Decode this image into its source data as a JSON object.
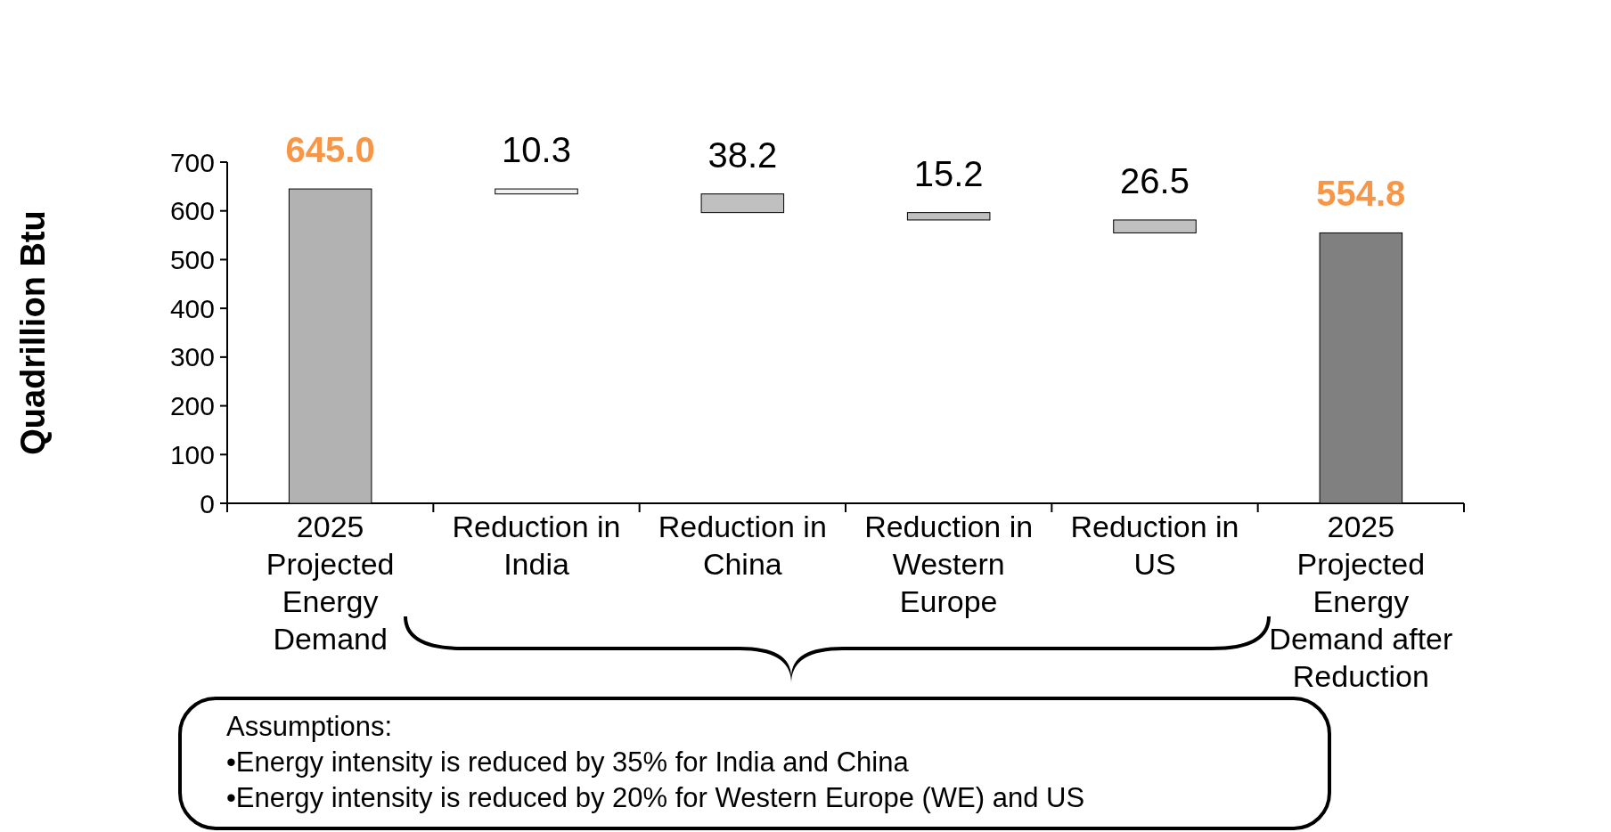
{
  "chart_data": {
    "type": "bar",
    "ylabel": "Quadrillion Btu",
    "categories": [
      "2025 Projected Energy Demand",
      "Reduction in India",
      "Reduction in China",
      "Reduction in Western Europe",
      "Reduction in US",
      "2025 Projected Energy Demand after Reduction"
    ],
    "values": [
      645.0,
      10.3,
      38.2,
      15.2,
      26.5,
      554.8
    ],
    "base": [
      0,
      634.7,
      596.5,
      581.3,
      554.8,
      0
    ],
    "colors": [
      "#b2b2b2",
      "#f2f2f2",
      "#c0c0c0",
      "#c0c0c0",
      "#c0c0c0",
      "#808080"
    ],
    "value_labels": [
      "645.0",
      "10.3",
      "38.2",
      "15.2",
      "26.5",
      "554.8"
    ],
    "ylim": [
      0,
      700
    ],
    "yticks": [
      0,
      100,
      200,
      300,
      400,
      500,
      600,
      700
    ],
    "annotations": [
      "Assumptions:",
      "•Energy intensity is reduced by 35% for India and China",
      "•Energy intensity is reduced by 20% for Western Europe (WE) and US"
    ]
  }
}
